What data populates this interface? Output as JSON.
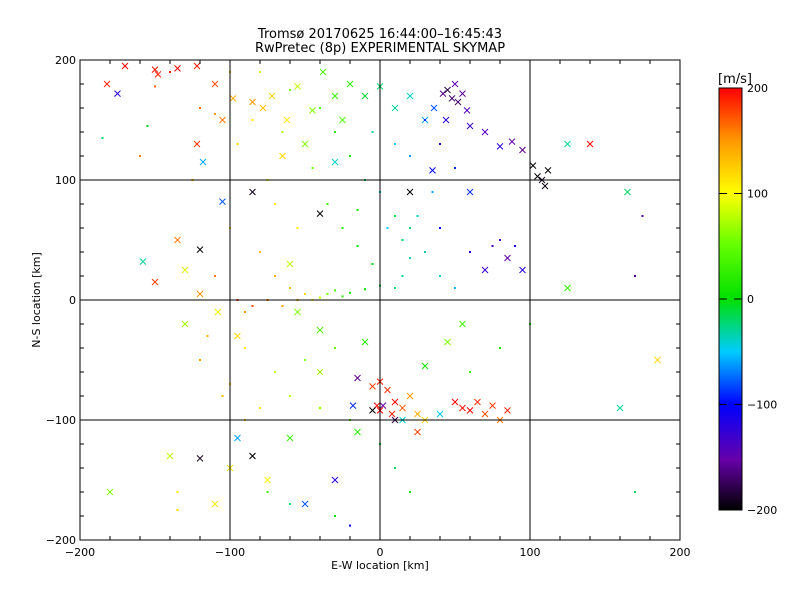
{
  "chart_data": {
    "type": "scatter",
    "title_line1": "Tromsø 20170625 16:44:00–16:45:43",
    "title_line2": "RwPretec (8p) EXPERIMENTAL SKYMAP",
    "xlabel": "E-W location [km]",
    "ylabel": "N-S location [km]",
    "xlim": [
      -200,
      200
    ],
    "ylim": [
      -200,
      200
    ],
    "xticks": [
      -200,
      -100,
      0,
      100,
      200
    ],
    "yticks": [
      -200,
      -100,
      0,
      100,
      200
    ],
    "grid": true,
    "colorbar": {
      "label": "[m/s]",
      "range": [
        -200,
        200
      ],
      "ticks": [
        200,
        100,
        0,
        -100,
        -200
      ],
      "colormap": "rainbow (black-purple-blue-cyan-green-yellow-red)"
    },
    "series": [
      {
        "marker": "x",
        "points": [
          [
            -170,
            195,
            200
          ],
          [
            -150,
            192,
            195
          ],
          [
            -148,
            188,
            190
          ],
          [
            -135,
            193,
            200
          ],
          [
            -122,
            195,
            190
          ],
          [
            -110,
            180,
            175
          ],
          [
            -98,
            168,
            140
          ],
          [
            -85,
            165,
            150
          ],
          [
            -78,
            160,
            130
          ],
          [
            -72,
            170,
            120
          ],
          [
            -62,
            150,
            100
          ],
          [
            -55,
            178,
            80
          ],
          [
            -45,
            158,
            60
          ],
          [
            -38,
            190,
            40
          ],
          [
            -30,
            170,
            30
          ],
          [
            -25,
            150,
            40
          ],
          [
            -20,
            180,
            20
          ],
          [
            -10,
            170,
            -10
          ],
          [
            0,
            178,
            -20
          ],
          [
            10,
            160,
            -30
          ],
          [
            20,
            170,
            -40
          ],
          [
            30,
            150,
            -60
          ],
          [
            36,
            160,
            -80
          ],
          [
            42,
            172,
            -160
          ],
          [
            45,
            175,
            -180
          ],
          [
            48,
            168,
            -170
          ],
          [
            50,
            180,
            -150
          ],
          [
            52,
            165,
            -170
          ],
          [
            55,
            172,
            -160
          ],
          [
            58,
            158,
            -140
          ],
          [
            44,
            150,
            -120
          ],
          [
            60,
            145,
            -130
          ],
          [
            70,
            140,
            -140
          ],
          [
            80,
            128,
            -120
          ],
          [
            88,
            132,
            -150
          ],
          [
            95,
            125,
            -160
          ],
          [
            102,
            112,
            -200
          ],
          [
            105,
            103,
            -200
          ],
          [
            108,
            100,
            -190
          ],
          [
            112,
            108,
            -200
          ],
          [
            110,
            95,
            -195
          ],
          [
            -175,
            172,
            -120
          ],
          [
            -182,
            180,
            190
          ],
          [
            -122,
            130,
            185
          ],
          [
            -105,
            150,
            160
          ],
          [
            -65,
            120,
            120
          ],
          [
            -118,
            115,
            -60
          ],
          [
            -105,
            82,
            -80
          ],
          [
            -85,
            90,
            -190
          ],
          [
            -40,
            72,
            -200
          ],
          [
            -30,
            115,
            -40
          ],
          [
            -50,
            130,
            60
          ],
          [
            20,
            90,
            -200
          ],
          [
            35,
            108,
            -100
          ],
          [
            60,
            90,
            -90
          ],
          [
            -135,
            50,
            160
          ],
          [
            -150,
            15,
            180
          ],
          [
            -120,
            42,
            -200
          ],
          [
            -158,
            32,
            -30
          ],
          [
            -130,
            25,
            90
          ],
          [
            -120,
            5,
            150
          ],
          [
            -108,
            -10,
            95
          ],
          [
            -95,
            -30,
            120
          ],
          [
            -130,
            -20,
            70
          ],
          [
            -60,
            30,
            80
          ],
          [
            -55,
            -10,
            60
          ],
          [
            -40,
            -25,
            40
          ],
          [
            0,
            -68,
            190
          ],
          [
            -5,
            -72,
            180
          ],
          [
            5,
            -75,
            185
          ],
          [
            10,
            -85,
            200
          ],
          [
            -2,
            -88,
            195
          ],
          [
            0,
            -92,
            200
          ],
          [
            8,
            -95,
            190
          ],
          [
            15,
            -90,
            170
          ],
          [
            20,
            -80,
            150
          ],
          [
            25,
            -95,
            140
          ],
          [
            30,
            -100,
            120
          ],
          [
            50,
            -85,
            200
          ],
          [
            55,
            -90,
            195
          ],
          [
            60,
            -92,
            200
          ],
          [
            65,
            -85,
            185
          ],
          [
            70,
            -95,
            175
          ],
          [
            75,
            -88,
            180
          ],
          [
            80,
            -100,
            160
          ],
          [
            85,
            -92,
            190
          ],
          [
            -15,
            -65,
            -160
          ],
          [
            -5,
            -92,
            -200
          ],
          [
            2,
            -88,
            -150
          ],
          [
            10,
            -100,
            -180
          ],
          [
            -85,
            -130,
            -200
          ],
          [
            -120,
            -132,
            -190
          ],
          [
            -95,
            -115,
            -60
          ],
          [
            -60,
            -115,
            30
          ],
          [
            -30,
            -150,
            -120
          ],
          [
            -50,
            -170,
            -80
          ],
          [
            -15,
            -110,
            20
          ],
          [
            15,
            -100,
            -40
          ],
          [
            25,
            -110,
            180
          ],
          [
            40,
            -95,
            -50
          ],
          [
            -18,
            -88,
            -90
          ],
          [
            -75,
            -150,
            100
          ],
          [
            -100,
            -140,
            110
          ],
          [
            -110,
            -170,
            95
          ],
          [
            -140,
            -130,
            80
          ],
          [
            -180,
            -160,
            60
          ],
          [
            160,
            -90,
            -30
          ],
          [
            185,
            -50,
            120
          ],
          [
            125,
            10,
            20
          ],
          [
            165,
            90,
            -20
          ],
          [
            140,
            130,
            200
          ],
          [
            125,
            130,
            -30
          ],
          [
            95,
            25,
            -120
          ],
          [
            70,
            25,
            -130
          ],
          [
            85,
            35,
            -150
          ],
          [
            45,
            -35,
            60
          ],
          [
            55,
            -20,
            30
          ],
          [
            -40,
            -60,
            70
          ],
          [
            -10,
            -35,
            20
          ],
          [
            30,
            -55,
            10
          ]
        ]
      },
      {
        "marker": "dot",
        "points": [
          [
            -160,
            120,
            160
          ],
          [
            -150,
            178,
            170
          ],
          [
            -110,
            155,
            150
          ],
          [
            -125,
            100,
            140
          ],
          [
            -185,
            135,
            -20
          ],
          [
            -155,
            145,
            -10
          ],
          [
            -100,
            60,
            120
          ],
          [
            -70,
            80,
            110
          ],
          [
            -55,
            60,
            100
          ],
          [
            -80,
            40,
            130
          ],
          [
            -70,
            20,
            140
          ],
          [
            -60,
            10,
            135
          ],
          [
            -50,
            5,
            120
          ],
          [
            -45,
            0,
            100
          ],
          [
            -40,
            2,
            80
          ],
          [
            -35,
            5,
            60
          ],
          [
            -30,
            8,
            40
          ],
          [
            -25,
            3,
            20
          ],
          [
            -20,
            6,
            10
          ],
          [
            -10,
            9,
            0
          ],
          [
            0,
            12,
            -10
          ],
          [
            10,
            10,
            -20
          ],
          [
            15,
            20,
            -30
          ],
          [
            20,
            35,
            -40
          ],
          [
            5,
            60,
            -50
          ],
          [
            0,
            90,
            -40
          ],
          [
            -10,
            100,
            -20
          ],
          [
            -20,
            120,
            10
          ],
          [
            -30,
            140,
            20
          ],
          [
            -40,
            160,
            40
          ],
          [
            -60,
            175,
            60
          ],
          [
            -80,
            190,
            80
          ],
          [
            -5,
            140,
            -30
          ],
          [
            10,
            130,
            -50
          ],
          [
            20,
            120,
            -60
          ],
          [
            40,
            60,
            -100
          ],
          [
            60,
            40,
            -120
          ],
          [
            75,
            45,
            -140
          ],
          [
            80,
            50,
            -130
          ],
          [
            90,
            45,
            -110
          ],
          [
            60,
            -60,
            30
          ],
          [
            80,
            -40,
            10
          ],
          [
            100,
            -20,
            0
          ],
          [
            -90,
            -40,
            110
          ],
          [
            -100,
            -70,
            120
          ],
          [
            -80,
            -90,
            100
          ],
          [
            -60,
            -80,
            80
          ],
          [
            -40,
            -90,
            60
          ],
          [
            -20,
            -100,
            40
          ],
          [
            0,
            -120,
            -10
          ],
          [
            10,
            -140,
            -20
          ],
          [
            20,
            -160,
            10
          ],
          [
            -30,
            -180,
            0
          ],
          [
            -60,
            -170,
            -20
          ],
          [
            -75,
            -160,
            30
          ],
          [
            -135,
            -160,
            110
          ],
          [
            -135,
            -175,
            120
          ],
          [
            -20,
            -188,
            -100
          ],
          [
            170,
            -160,
            -20
          ],
          [
            175,
            70,
            -150
          ],
          [
            170,
            20,
            -160
          ],
          [
            -30,
            -40,
            50
          ],
          [
            -50,
            -50,
            60
          ],
          [
            -70,
            -60,
            80
          ],
          [
            -90,
            -10,
            150
          ],
          [
            -110,
            20,
            160
          ],
          [
            -95,
            0,
            180
          ],
          [
            -85,
            -5,
            175
          ],
          [
            -75,
            0,
            160
          ],
          [
            -65,
            -5,
            150
          ],
          [
            -55,
            0,
            140
          ],
          [
            -15,
            45,
            0
          ],
          [
            -5,
            30,
            -5
          ],
          [
            15,
            50,
            -20
          ],
          [
            25,
            70,
            -40
          ],
          [
            35,
            90,
            -60
          ],
          [
            50,
            110,
            -90
          ],
          [
            30,
            150,
            -90
          ],
          [
            40,
            130,
            -120
          ],
          [
            -120,
            160,
            170
          ],
          [
            -140,
            190,
            190
          ],
          [
            -100,
            190,
            130
          ],
          [
            -95,
            130,
            120
          ],
          [
            -85,
            150,
            110
          ],
          [
            -75,
            100,
            90
          ],
          [
            -65,
            140,
            70
          ],
          [
            -45,
            110,
            50
          ],
          [
            -35,
            80,
            30
          ],
          [
            -25,
            60,
            20
          ],
          [
            -15,
            75,
            10
          ],
          [
            10,
            70,
            -15
          ],
          [
            20,
            60,
            -25
          ],
          [
            30,
            40,
            -35
          ],
          [
            40,
            20,
            -45
          ],
          [
            50,
            10,
            -55
          ],
          [
            -115,
            -30,
            140
          ],
          [
            -120,
            -50,
            150
          ],
          [
            -105,
            -80,
            135
          ],
          [
            -90,
            -100,
            115
          ]
        ]
      }
    ]
  }
}
